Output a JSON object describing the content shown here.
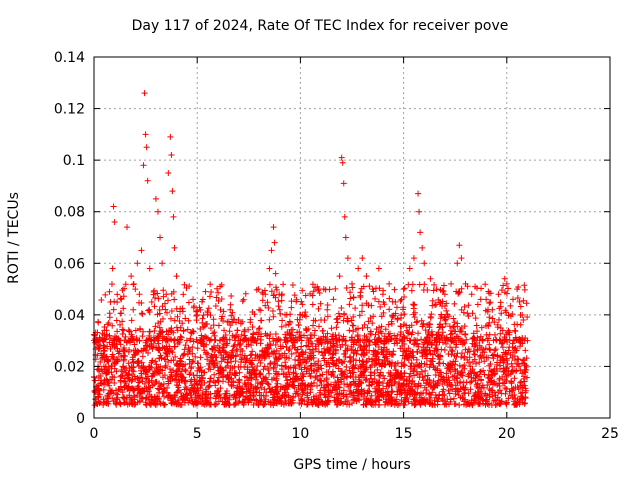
{
  "chart_data": {
    "type": "scatter",
    "title": "Day 117 of 2024, Rate Of TEC Index for receiver pove",
    "xlabel": "GPS time / hours",
    "ylabel": "ROTI / TECUs",
    "xlim": [
      0,
      25
    ],
    "ylim": [
      0,
      0.14
    ],
    "xticks": [
      0,
      5,
      10,
      15,
      20,
      25
    ],
    "yticks": [
      0,
      0.02,
      0.04,
      0.06,
      0.08,
      0.1,
      0.12,
      0.14
    ],
    "ytick_labels": [
      "0",
      "0.02",
      "0.04",
      "0.06",
      "0.08",
      "0.1",
      "0.12",
      "0.14"
    ],
    "grid": true,
    "marker": "+",
    "color": "#ff0000",
    "series": [
      {
        "values_description_omitted": "",
        "points": [
          [
            0.1,
            0.012
          ],
          [
            0.2,
            0.02
          ],
          [
            0.3,
            0.028
          ],
          [
            0.4,
            0.018
          ],
          [
            0.5,
            0.034
          ],
          [
            0.6,
            0.015
          ],
          [
            0.7,
            0.022
          ],
          [
            0.8,
            0.045
          ],
          [
            0.9,
            0.058
          ],
          [
            0.95,
            0.082
          ],
          [
            1.0,
            0.076
          ],
          [
            1.1,
            0.03
          ],
          [
            1.2,
            0.025
          ],
          [
            1.4,
            0.02
          ],
          [
            1.6,
            0.074
          ],
          [
            1.8,
            0.055
          ],
          [
            1.9,
            0.042
          ],
          [
            2.0,
            0.05
          ],
          [
            2.1,
            0.06
          ],
          [
            2.2,
            0.048
          ],
          [
            2.3,
            0.065
          ],
          [
            2.4,
            0.098
          ],
          [
            2.45,
            0.126
          ],
          [
            2.5,
            0.11
          ],
          [
            2.55,
            0.105
          ],
          [
            2.6,
            0.092
          ],
          [
            2.7,
            0.058
          ],
          [
            2.8,
            0.045
          ],
          [
            3.0,
            0.085
          ],
          [
            3.1,
            0.08
          ],
          [
            3.2,
            0.07
          ],
          [
            3.3,
            0.06
          ],
          [
            3.5,
            0.048
          ],
          [
            3.6,
            0.095
          ],
          [
            3.7,
            0.109
          ],
          [
            3.75,
            0.102
          ],
          [
            3.8,
            0.088
          ],
          [
            3.85,
            0.078
          ],
          [
            3.9,
            0.066
          ],
          [
            4.0,
            0.055
          ],
          [
            4.2,
            0.035
          ],
          [
            4.5,
            0.03
          ],
          [
            4.8,
            0.046
          ],
          [
            5.0,
            0.04
          ],
          [
            5.2,
            0.032
          ],
          [
            5.4,
            0.049
          ],
          [
            5.6,
            0.03
          ],
          [
            5.8,
            0.036
          ],
          [
            6.0,
            0.028
          ],
          [
            6.3,
            0.034
          ],
          [
            6.6,
            0.036
          ],
          [
            7.0,
            0.038
          ],
          [
            7.3,
            0.032
          ],
          [
            7.6,
            0.03
          ],
          [
            8.0,
            0.042
          ],
          [
            8.3,
            0.048
          ],
          [
            8.5,
            0.058
          ],
          [
            8.6,
            0.065
          ],
          [
            8.7,
            0.074
          ],
          [
            8.75,
            0.068
          ],
          [
            8.8,
            0.056
          ],
          [
            9.0,
            0.042
          ],
          [
            9.3,
            0.036
          ],
          [
            9.6,
            0.032
          ],
          [
            10.0,
            0.04
          ],
          [
            10.3,
            0.034
          ],
          [
            10.6,
            0.044
          ],
          [
            11.0,
            0.038
          ],
          [
            11.3,
            0.042
          ],
          [
            11.6,
            0.046
          ],
          [
            11.9,
            0.055
          ],
          [
            12.0,
            0.101
          ],
          [
            12.05,
            0.099
          ],
          [
            12.1,
            0.091
          ],
          [
            12.15,
            0.078
          ],
          [
            12.2,
            0.07
          ],
          [
            12.3,
            0.062
          ],
          [
            12.5,
            0.052
          ],
          [
            12.8,
            0.058
          ],
          [
            13.0,
            0.062
          ],
          [
            13.2,
            0.055
          ],
          [
            13.5,
            0.05
          ],
          [
            13.8,
            0.058
          ],
          [
            14.0,
            0.048
          ],
          [
            14.3,
            0.052
          ],
          [
            14.6,
            0.045
          ],
          [
            15.0,
            0.05
          ],
          [
            15.3,
            0.058
          ],
          [
            15.5,
            0.062
          ],
          [
            15.7,
            0.087
          ],
          [
            15.75,
            0.08
          ],
          [
            15.8,
            0.072
          ],
          [
            15.9,
            0.066
          ],
          [
            16.0,
            0.06
          ],
          [
            16.3,
            0.054
          ],
          [
            16.6,
            0.05
          ],
          [
            17.0,
            0.048
          ],
          [
            17.3,
            0.052
          ],
          [
            17.6,
            0.06
          ],
          [
            17.7,
            0.067
          ],
          [
            17.8,
            0.062
          ],
          [
            18.0,
            0.052
          ],
          [
            18.3,
            0.048
          ],
          [
            18.6,
            0.044
          ],
          [
            19.0,
            0.046
          ],
          [
            19.3,
            0.042
          ],
          [
            19.6,
            0.048
          ],
          [
            19.9,
            0.054
          ],
          [
            20.0,
            0.052
          ],
          [
            20.3,
            0.046
          ],
          [
            20.5,
            0.05
          ],
          [
            20.8,
            0.038
          ],
          [
            21.0,
            0.03
          ]
        ]
      }
    ],
    "baseline_band": {
      "x_start": 0,
      "x_end": 21,
      "y_min": 0.005,
      "y_max": 0.03
    },
    "note": ""
  }
}
